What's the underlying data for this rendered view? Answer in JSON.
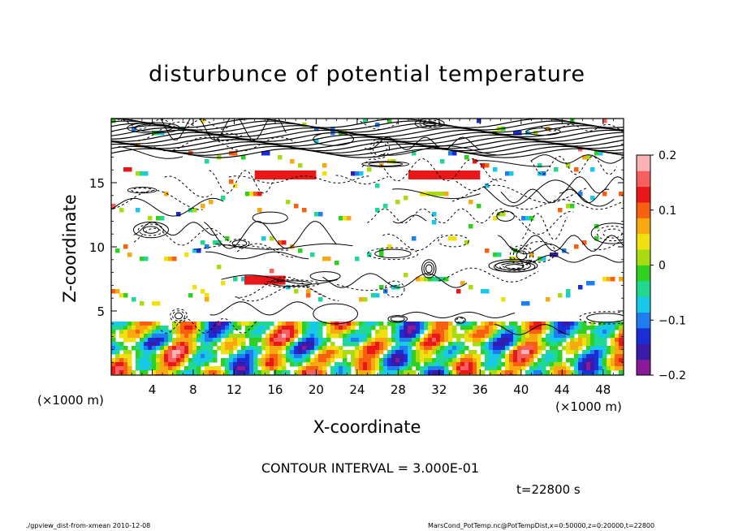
{
  "chart_data": {
    "type": "heatmap",
    "title": "disturbunce of potential temperature",
    "xlabel": "X-coordinate",
    "ylabel": "Z-coordinate",
    "x_scale_label": "(×1000 m)",
    "x_ticks": [
      "4",
      "8",
      "12",
      "16",
      "20",
      "24",
      "28",
      "32",
      "36",
      "40",
      "44",
      "48"
    ],
    "y_ticks": [
      "5",
      "10",
      "15"
    ],
    "xlim": [
      0,
      50
    ],
    "ylim": [
      0,
      20
    ],
    "colorbar": {
      "labels": [
        "0.2",
        "0.1",
        "0",
        "−0.1",
        "−0.2"
      ],
      "range": [
        -0.2,
        0.2
      ],
      "colors": [
        "#8a1a9a",
        "#3a1aa8",
        "#1a2ed8",
        "#1e7ef0",
        "#18c8e8",
        "#20d890",
        "#30d020",
        "#a8dc10",
        "#f0e010",
        "#f8a810",
        "#f86010",
        "#e81818",
        "#f86060",
        "#f8b4b4"
      ]
    },
    "contour_interval": "CONTOUR INTERVAL = 3.000E-01",
    "time": "t=22800 s"
  },
  "footer": {
    "left": "./gpview_dist-from-xmean   2010-12-08",
    "right": "MarsCond_PotTemp.nc@PotTempDist,x=0:50000,z=0:20000,t=22800"
  }
}
